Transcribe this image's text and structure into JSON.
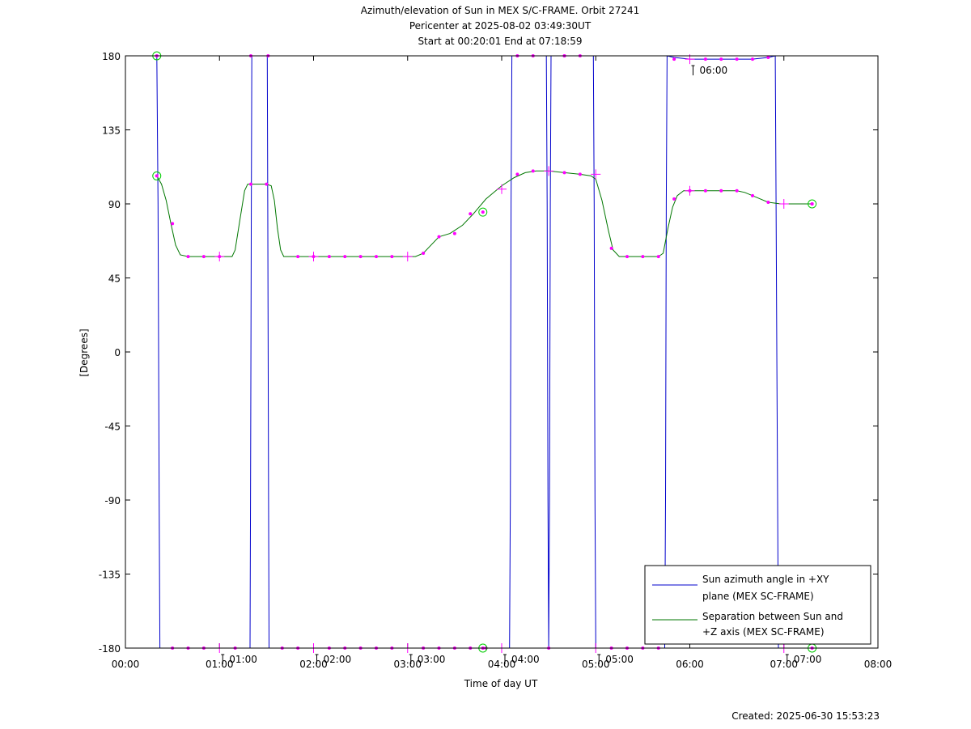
{
  "chart_data": {
    "type": "line",
    "title_lines": [
      "Azimuth/elevation of Sun in MEX S/C-FRAME.  Orbit 27241",
      "Pericenter at 2025-08-02 03:49:30UT",
      "Start at 00:20:01 End at 07:18:59"
    ],
    "xlabel": "Time of day UT",
    "ylabel": "[Degrees]",
    "footer": "Created: 2025-06-30 15:53:23",
    "xlim": [
      0,
      480
    ],
    "ylim": [
      -180,
      180
    ],
    "x_ticks": [
      {
        "v": 0,
        "label": "00:00"
      },
      {
        "v": 60,
        "label": "01:00"
      },
      {
        "v": 120,
        "label": "02:00"
      },
      {
        "v": 180,
        "label": "03:00"
      },
      {
        "v": 240,
        "label": "04:00"
      },
      {
        "v": 300,
        "label": "05:00"
      },
      {
        "v": 360,
        "label": "06:00"
      },
      {
        "v": 420,
        "label": "07:00"
      },
      {
        "v": 480,
        "label": "08:00"
      }
    ],
    "y_ticks": [
      {
        "v": 180,
        "label": "180"
      },
      {
        "v": 135,
        "label": "135"
      },
      {
        "v": 90,
        "label": "90"
      },
      {
        "v": 45,
        "label": "45"
      },
      {
        "v": 0,
        "label": "0"
      },
      {
        "v": -45,
        "label": "-45"
      },
      {
        "v": -90,
        "label": "-90"
      },
      {
        "v": -135,
        "label": "-135"
      },
      {
        "v": -180,
        "label": "-180"
      }
    ],
    "hour_markers": [
      {
        "x": 60,
        "y": -180,
        "label": "01:00"
      },
      {
        "x": 120,
        "y": -180,
        "label": "02:00"
      },
      {
        "x": 180,
        "y": -180,
        "label": "03:00"
      },
      {
        "x": 240,
        "y": -180,
        "label": "04:00"
      },
      {
        "x": 300,
        "y": -180,
        "label": "05:00"
      },
      {
        "x": 360,
        "y": 178,
        "label": "06:00"
      },
      {
        "x": 420,
        "y": -180,
        "label": "07:00"
      }
    ],
    "series": [
      {
        "name": "Sun azimuth angle in +XY plane (MEX SC-FRAME)",
        "legend_lines": [
          "Sun azimuth angle in +XY",
          "plane (MEX SC-FRAME)"
        ],
        "color": "#0000cc",
        "points": [
          [
            20.0,
            180
          ],
          [
            20.8,
            90
          ],
          [
            21.5,
            -90
          ],
          [
            22.0,
            -180
          ],
          [
            30,
            -180
          ],
          [
            40,
            -180
          ],
          [
            50,
            -180
          ],
          [
            60,
            -180
          ],
          [
            70,
            -180
          ],
          [
            80,
            -180
          ],
          [
            79.5,
            -180
          ],
          [
            79.8,
            -90
          ],
          [
            80.3,
            90
          ],
          [
            80.6,
            180
          ],
          [
            81.0,
            180
          ],
          [
            90.5,
            180
          ],
          [
            90.8,
            90
          ],
          [
            91.3,
            -90
          ],
          [
            91.6,
            -180
          ],
          [
            100,
            -180
          ],
          [
            120,
            -180
          ],
          [
            140,
            -180
          ],
          [
            160,
            -180
          ],
          [
            180,
            -180
          ],
          [
            200,
            -180
          ],
          [
            220,
            -180
          ],
          [
            230,
            -180
          ],
          [
            240,
            -180
          ],
          [
            245,
            -180
          ],
          [
            245.5,
            -90
          ],
          [
            246.0,
            90
          ],
          [
            246.5,
            180
          ],
          [
            250,
            180
          ],
          [
            260,
            180
          ],
          [
            268.5,
            180
          ],
          [
            269.0,
            90
          ],
          [
            269.5,
            -90
          ],
          [
            270,
            -180
          ],
          [
            270.5,
            -90
          ],
          [
            271.0,
            90
          ],
          [
            271.5,
            180
          ],
          [
            280,
            180
          ],
          [
            290,
            180
          ],
          [
            298.5,
            180
          ],
          [
            299.0,
            90
          ],
          [
            299.5,
            -90
          ],
          [
            300,
            -180
          ],
          [
            310,
            -180
          ],
          [
            320,
            -180
          ],
          [
            330,
            -180
          ],
          [
            344,
            -180
          ],
          [
            344.5,
            -90
          ],
          [
            345.0,
            90
          ],
          [
            345.5,
            180
          ],
          [
            350,
            179
          ],
          [
            360,
            178
          ],
          [
            370,
            178
          ],
          [
            380,
            178
          ],
          [
            390,
            178
          ],
          [
            400,
            178
          ],
          [
            410,
            179
          ],
          [
            414.5,
            180
          ],
          [
            415.0,
            90
          ],
          [
            415.5,
            0
          ],
          [
            416.0,
            -90
          ],
          [
            416.5,
            -180
          ],
          [
            420,
            -180
          ],
          [
            438,
            -180
          ]
        ]
      },
      {
        "name": "Separation between Sun and +Z axis (MEX SC-FRAME)",
        "legend_lines": [
          "Separation between Sun and",
          "+Z axis (MEX SC-FRAME)"
        ],
        "color": "#007700",
        "points": [
          [
            20.0,
            107
          ],
          [
            23,
            102
          ],
          [
            26,
            92
          ],
          [
            29,
            78
          ],
          [
            32,
            65
          ],
          [
            35,
            59
          ],
          [
            40,
            58
          ],
          [
            50,
            58
          ],
          [
            60,
            58
          ],
          [
            68,
            58
          ],
          [
            70,
            62
          ],
          [
            73,
            80
          ],
          [
            76,
            98
          ],
          [
            78,
            102
          ],
          [
            90,
            102
          ],
          [
            93,
            101
          ],
          [
            95,
            92
          ],
          [
            97,
            75
          ],
          [
            99,
            62
          ],
          [
            101,
            58
          ],
          [
            110,
            58
          ],
          [
            130,
            58
          ],
          [
            150,
            58
          ],
          [
            170,
            58
          ],
          [
            180,
            58
          ],
          [
            185,
            58
          ],
          [
            190,
            60
          ],
          [
            195,
            65
          ],
          [
            200,
            70
          ],
          [
            207,
            72
          ],
          [
            215,
            77
          ],
          [
            222,
            84
          ],
          [
            230,
            93
          ],
          [
            240,
            101
          ],
          [
            248,
            106
          ],
          [
            255,
            109
          ],
          [
            262,
            110
          ],
          [
            270,
            110
          ],
          [
            280,
            109
          ],
          [
            290,
            108
          ],
          [
            297,
            107
          ],
          [
            300,
            105
          ],
          [
            304,
            92
          ],
          [
            308,
            74
          ],
          [
            311,
            62
          ],
          [
            315,
            58
          ],
          [
            320,
            58
          ],
          [
            330,
            58
          ],
          [
            340,
            58
          ],
          [
            343,
            60
          ],
          [
            346,
            75
          ],
          [
            349,
            88
          ],
          [
            352,
            95
          ],
          [
            356,
            98
          ],
          [
            360,
            98
          ],
          [
            370,
            98
          ],
          [
            380,
            98
          ],
          [
            390,
            98
          ],
          [
            395,
            97
          ],
          [
            400,
            95
          ],
          [
            405,
            93
          ],
          [
            410,
            91
          ],
          [
            418,
            90
          ],
          [
            430,
            90
          ],
          [
            438,
            90
          ]
        ]
      }
    ],
    "markers": {
      "color": "#ff00ff",
      "circle_color": "#00cc00",
      "dots": [
        [
          30,
          -180
        ],
        [
          40,
          -180
        ],
        [
          50,
          -180
        ],
        [
          70,
          -180
        ],
        [
          100,
          -180
        ],
        [
          110,
          -180
        ],
        [
          130,
          -180
        ],
        [
          140,
          -180
        ],
        [
          150,
          -180
        ],
        [
          160,
          -180
        ],
        [
          170,
          -180
        ],
        [
          190,
          -180
        ],
        [
          200,
          -180
        ],
        [
          210,
          -180
        ],
        [
          220,
          -180
        ],
        [
          230,
          -180
        ],
        [
          250,
          180
        ],
        [
          260,
          180
        ],
        [
          280,
          180
        ],
        [
          290,
          180
        ],
        [
          310,
          -180
        ],
        [
          320,
          -180
        ],
        [
          330,
          -180
        ],
        [
          340,
          -180
        ],
        [
          350,
          178
        ],
        [
          370,
          178
        ],
        [
          380,
          178
        ],
        [
          390,
          178
        ],
        [
          400,
          178
        ],
        [
          410,
          179
        ],
        [
          80,
          180
        ],
        [
          91,
          180
        ],
        [
          270,
          -180
        ],
        [
          280,
          180
        ],
        [
          30,
          78
        ],
        [
          40,
          58
        ],
        [
          50,
          58
        ],
        [
          60,
          58
        ],
        [
          80,
          102
        ],
        [
          90,
          102
        ],
        [
          110,
          58
        ],
        [
          120,
          58
        ],
        [
          130,
          58
        ],
        [
          140,
          58
        ],
        [
          150,
          58
        ],
        [
          160,
          58
        ],
        [
          170,
          58
        ],
        [
          190,
          60
        ],
        [
          200,
          70
        ],
        [
          210,
          72
        ],
        [
          220,
          84
        ],
        [
          250,
          108
        ],
        [
          260,
          110
        ],
        [
          280,
          109
        ],
        [
          290,
          108
        ],
        [
          310,
          63
        ],
        [
          320,
          58
        ],
        [
          330,
          58
        ],
        [
          340,
          58
        ],
        [
          350,
          93
        ],
        [
          360,
          98
        ],
        [
          370,
          98
        ],
        [
          380,
          98
        ],
        [
          390,
          98
        ],
        [
          400,
          95
        ],
        [
          410,
          91
        ],
        [
          438,
          90
        ]
      ],
      "crosses": [
        [
          60,
          -180
        ],
        [
          120,
          -180
        ],
        [
          180,
          -180
        ],
        [
          240,
          -180
        ],
        [
          300,
          -180
        ],
        [
          360,
          178
        ],
        [
          420,
          -180
        ],
        [
          60,
          58
        ],
        [
          120,
          58
        ],
        [
          180,
          58
        ],
        [
          240,
          99
        ],
        [
          270,
          110
        ],
        [
          300,
          108
        ],
        [
          360,
          98
        ],
        [
          420,
          90
        ]
      ],
      "circles": [
        [
          20,
          180
        ],
        [
          20,
          107
        ],
        [
          228,
          -180
        ],
        [
          228,
          85
        ],
        [
          438,
          -180
        ],
        [
          438,
          90
        ]
      ]
    }
  }
}
